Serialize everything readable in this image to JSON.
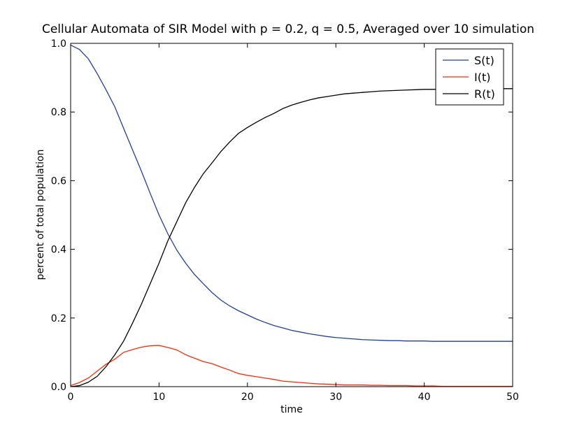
{
  "chart_data": {
    "type": "line",
    "title": "Cellular Automata of SIR Model with p = 0.2, q = 0.5, Averaged over 10 simulation",
    "xlabel": "time",
    "ylabel": "percent of total population",
    "xlim": [
      0,
      50
    ],
    "ylim": [
      0,
      1.0
    ],
    "xticks": [
      0,
      10,
      20,
      30,
      40,
      50
    ],
    "xtick_labels": [
      "0",
      "10",
      "20",
      "30",
      "40",
      "50"
    ],
    "yticks": [
      0,
      0.2,
      0.4,
      0.6,
      0.8,
      1.0
    ],
    "ytick_labels": [
      "0.0",
      "0.2",
      "0.4",
      "0.6",
      "0.8",
      "1.0"
    ],
    "grid": false,
    "legend_position": "top-right",
    "x": [
      0,
      1,
      2,
      3,
      4,
      5,
      6,
      7,
      8,
      9,
      10,
      11,
      12,
      13,
      14,
      15,
      16,
      17,
      18,
      19,
      20,
      21,
      22,
      23,
      24,
      25,
      26,
      27,
      28,
      29,
      30,
      31,
      32,
      33,
      34,
      35,
      36,
      37,
      38,
      39,
      40,
      41,
      42,
      43,
      44,
      45,
      46,
      47,
      48,
      49,
      50
    ],
    "series": [
      {
        "name": "S(t)",
        "color": "#1f3fa0",
        "values": [
          0.995,
          0.982,
          0.955,
          0.912,
          0.865,
          0.815,
          0.752,
          0.69,
          0.628,
          0.563,
          0.5,
          0.445,
          0.398,
          0.36,
          0.327,
          0.3,
          0.274,
          0.252,
          0.235,
          0.221,
          0.209,
          0.197,
          0.187,
          0.178,
          0.171,
          0.164,
          0.159,
          0.154,
          0.15,
          0.146,
          0.143,
          0.141,
          0.139,
          0.137,
          0.136,
          0.135,
          0.134,
          0.134,
          0.133,
          0.133,
          0.133,
          0.132,
          0.132,
          0.132,
          0.132,
          0.132,
          0.132,
          0.132,
          0.132,
          0.132,
          0.132
        ]
      },
      {
        "name": "I(t)",
        "color": "#ff2a00",
        "values": [
          0.003,
          0.012,
          0.025,
          0.045,
          0.065,
          0.08,
          0.1,
          0.108,
          0.115,
          0.119,
          0.12,
          0.114,
          0.107,
          0.093,
          0.083,
          0.073,
          0.067,
          0.057,
          0.048,
          0.038,
          0.033,
          0.029,
          0.025,
          0.021,
          0.016,
          0.014,
          0.012,
          0.01,
          0.008,
          0.007,
          0.006,
          0.005,
          0.005,
          0.005,
          0.004,
          0.004,
          0.003,
          0.003,
          0.003,
          0.002,
          0.002,
          0.002,
          0.001,
          0.001,
          0.001,
          0.001,
          0.001,
          0.001,
          0.001,
          0.001,
          0.001
        ]
      },
      {
        "name": "R(t)",
        "color": "#000000",
        "values": [
          0.0,
          0.003,
          0.013,
          0.03,
          0.058,
          0.093,
          0.133,
          0.185,
          0.24,
          0.3,
          0.36,
          0.425,
          0.48,
          0.535,
          0.58,
          0.62,
          0.652,
          0.685,
          0.713,
          0.738,
          0.755,
          0.77,
          0.784,
          0.796,
          0.81,
          0.82,
          0.828,
          0.835,
          0.841,
          0.845,
          0.849,
          0.853,
          0.855,
          0.857,
          0.859,
          0.861,
          0.862,
          0.863,
          0.864,
          0.865,
          0.866,
          0.866,
          0.867,
          0.867,
          0.867,
          0.867,
          0.868,
          0.868,
          0.868,
          0.868,
          0.868
        ]
      }
    ]
  }
}
